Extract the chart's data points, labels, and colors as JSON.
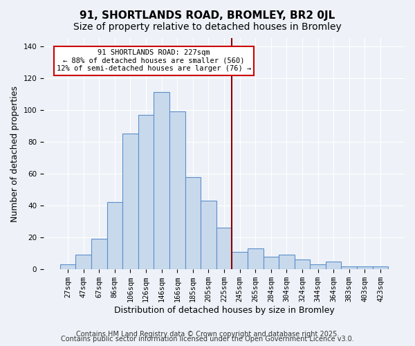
{
  "title": "91, SHORTLANDS ROAD, BROMLEY, BR2 0JL",
  "subtitle": "Size of property relative to detached houses in Bromley",
  "xlabel": "Distribution of detached houses by size in Bromley",
  "ylabel": "Number of detached properties",
  "bar_labels": [
    "27sqm",
    "47sqm",
    "67sqm",
    "86sqm",
    "106sqm",
    "126sqm",
    "146sqm",
    "166sqm",
    "185sqm",
    "205sqm",
    "225sqm",
    "245sqm",
    "265sqm",
    "284sqm",
    "304sqm",
    "324sqm",
    "344sqm",
    "364sqm",
    "383sqm",
    "403sqm",
    "423sqm"
  ],
  "bar_values": [
    3,
    9,
    19,
    42,
    85,
    97,
    111,
    99,
    58,
    43,
    26,
    11,
    13,
    8,
    9,
    6,
    3,
    5,
    2,
    2,
    2
  ],
  "bar_color": "#c9d9ec",
  "bar_edge_color": "#5b8fc9",
  "vline_x": 10.5,
  "vline_color": "#8b0000",
  "annotation_line1": "91 SHORTLANDS ROAD: 227sqm",
  "annotation_line2": "← 88% of detached houses are smaller (560)",
  "annotation_line3": "12% of semi-detached houses are larger (76) →",
  "annotation_box_color": "#ffffff",
  "annotation_box_edge": "#cc0000",
  "ylim": [
    0,
    145
  ],
  "yticks": [
    0,
    20,
    40,
    60,
    80,
    100,
    120,
    140
  ],
  "footer1": "Contains HM Land Registry data © Crown copyright and database right 2025.",
  "footer2": "Contains public sector information licensed under the Open Government Licence v3.0.",
  "bg_color": "#eef2f8",
  "plot_bg_color": "#eef2f8",
  "title_fontsize": 11,
  "subtitle_fontsize": 10,
  "axis_label_fontsize": 9,
  "tick_fontsize": 7.5,
  "footer_fontsize": 7
}
